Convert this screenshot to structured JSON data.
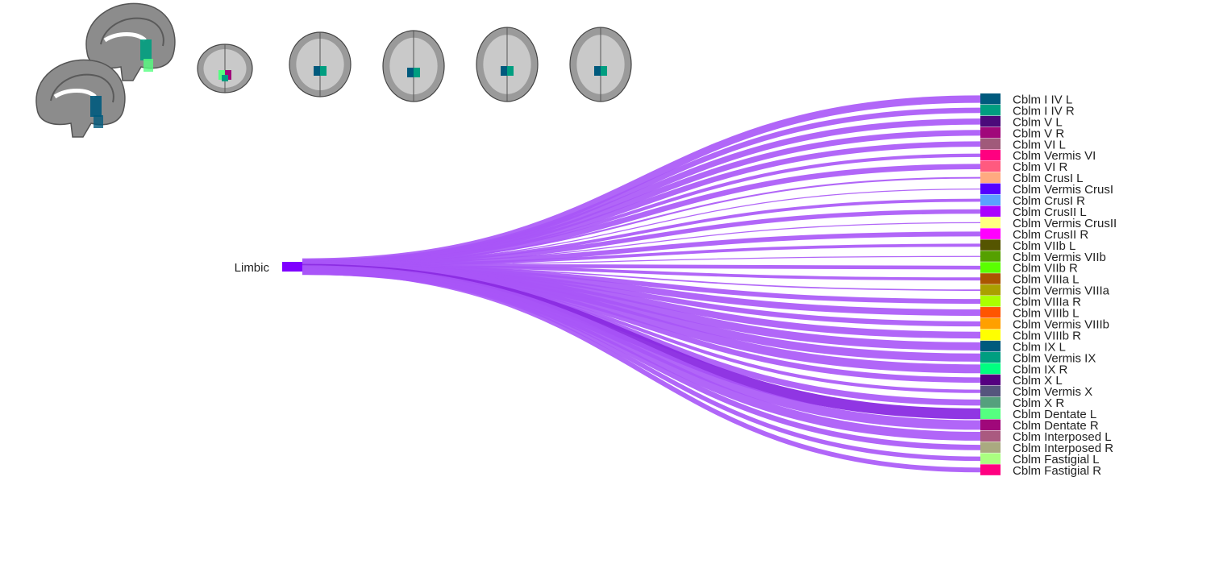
{
  "source": {
    "label": "Limbic",
    "color": "#7f00ff"
  },
  "flow_color": "#a855f7",
  "flow_highlight_color": "#8a2be2",
  "targets": [
    {
      "label": "Cblm I IV L",
      "color": "#005a7d",
      "weight": 2.2
    },
    {
      "label": "Cblm I IV R",
      "color": "#009e80",
      "weight": 1.6
    },
    {
      "label": "Cblm V L",
      "color": "#4b0a7a",
      "weight": 1.8
    },
    {
      "label": "Cblm V R",
      "color": "#a0087a",
      "weight": 1.7
    },
    {
      "label": "Cblm VI L",
      "color": "#a05a7a",
      "weight": 1.6
    },
    {
      "label": "Cblm Vermis VI",
      "color": "#ff0080",
      "weight": 1.0
    },
    {
      "label": "Cblm VI R",
      "color": "#ff5a7f",
      "weight": 1.6
    },
    {
      "label": "Cblm CrusI L",
      "color": "#ffaa80",
      "weight": 0.5
    },
    {
      "label": "Cblm Vermis CrusI",
      "color": "#5500ff",
      "weight": 0.3
    },
    {
      "label": "Cblm CrusI R",
      "color": "#5aa0ff",
      "weight": 0.9
    },
    {
      "label": "Cblm CrusII L",
      "color": "#aa00ff",
      "weight": 1.3
    },
    {
      "label": "Cblm Vermis CrusII",
      "color": "#ffff80",
      "weight": 0.3
    },
    {
      "label": "Cblm CrusII R",
      "color": "#ff00ff",
      "weight": 1.4
    },
    {
      "label": "Cblm VIIb L",
      "color": "#555500",
      "weight": 0.9
    },
    {
      "label": "Cblm Vermis VIIb",
      "color": "#55a000",
      "weight": 0.3
    },
    {
      "label": "Cblm VIIb R",
      "color": "#5aff00",
      "weight": 1.1
    },
    {
      "label": "Cblm VIIIa L",
      "color": "#aa5500",
      "weight": 0.9
    },
    {
      "label": "Cblm Vermis VIIIa",
      "color": "#aaa000",
      "weight": 0.4
    },
    {
      "label": "Cblm VIIIa R",
      "color": "#aaff00",
      "weight": 1.4
    },
    {
      "label": "Cblm VIIIb L",
      "color": "#ff5500",
      "weight": 1.9
    },
    {
      "label": "Cblm Vermis VIIIb",
      "color": "#ffa000",
      "weight": 1.5
    },
    {
      "label": "Cblm VIIIb R",
      "color": "#ffff00",
      "weight": 2.0
    },
    {
      "label": "Cblm IX L",
      "color": "#005a7d",
      "weight": 2.4
    },
    {
      "label": "Cblm Vermis IX",
      "color": "#009e80",
      "weight": 2.4
    },
    {
      "label": "Cblm IX R",
      "color": "#00ff80",
      "weight": 2.6
    },
    {
      "label": "Cblm X L",
      "color": "#550080",
      "weight": 1.6
    },
    {
      "label": "Cblm Vermis X",
      "color": "#55557d",
      "weight": 1.0
    },
    {
      "label": "Cblm X R",
      "color": "#55a07d",
      "weight": 1.8
    },
    {
      "label": "Cblm Dentate L",
      "color": "#55ff80",
      "weight": 3.2,
      "highlight": true
    },
    {
      "label": "Cblm Dentate R",
      "color": "#a0087a",
      "weight": 2.8
    },
    {
      "label": "Cblm Interposed L",
      "color": "#aa5a80",
      "weight": 2.6
    },
    {
      "label": "Cblm Interposed R",
      "color": "#aaaa80",
      "weight": 1.6
    },
    {
      "label": "Cblm Fastigial L",
      "color": "#aaff80",
      "weight": 1.3
    },
    {
      "label": "Cblm Fastigial R",
      "color": "#ff0080",
      "weight": 1.4
    }
  ],
  "brain_thumbnails": {
    "sagittal_views": [
      {
        "view": "sagittal",
        "overlay_colors": [
          "#009e80",
          "#55ff80"
        ]
      },
      {
        "view": "sagittal",
        "overlay_colors": [
          "#005a7d"
        ]
      }
    ],
    "axial_slices": [
      {
        "view": "axial",
        "overlay_colors": [
          "#55ff80",
          "#a0087a",
          "#009e80"
        ]
      },
      {
        "view": "axial",
        "overlay_colors": [
          "#005a7d",
          "#009e80"
        ]
      },
      {
        "view": "axial",
        "overlay_colors": [
          "#005a7d",
          "#009e80"
        ]
      },
      {
        "view": "axial",
        "overlay_colors": [
          "#005a7d",
          "#009e80"
        ]
      },
      {
        "view": "axial",
        "overlay_colors": [
          "#005a7d",
          "#009e80"
        ]
      }
    ]
  }
}
